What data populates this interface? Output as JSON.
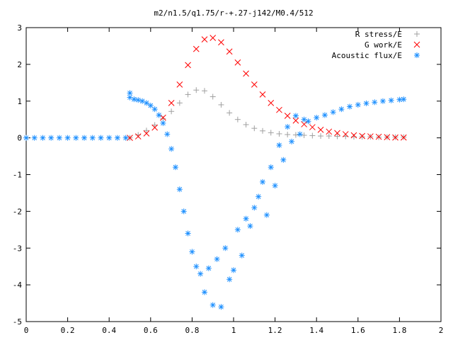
{
  "chart_data": {
    "type": "scatter",
    "title": "m2/n1.5/q1.75/r-+.27-j142/M0.4/512",
    "xlabel": "",
    "ylabel": "",
    "xlim": [
      0,
      2
    ],
    "ylim": [
      -5,
      3
    ],
    "x_ticks": [
      "0",
      "0.2",
      "0.4",
      "0.6",
      "0.8",
      "1",
      "1.2",
      "1.4",
      "1.6",
      "1.8",
      "2"
    ],
    "y_ticks": [
      "3",
      "2",
      "1",
      "0",
      "-1",
      "-2",
      "-3",
      "-4",
      "-5"
    ],
    "grid": false,
    "legend_position": "top-right",
    "series": [
      {
        "name": "R stress/E",
        "marker": "+",
        "color": "#a0a0a0",
        "x": [
          0.5,
          0.54,
          0.58,
          0.62,
          0.66,
          0.7,
          0.74,
          0.78,
          0.82,
          0.86,
          0.9,
          0.94,
          0.98,
          1.02,
          1.06,
          1.1,
          1.14,
          1.18,
          1.22,
          1.26,
          1.3,
          1.34,
          1.38,
          1.42,
          1.46,
          1.5,
          1.54,
          1.58,
          1.62,
          1.66,
          1.7,
          1.74,
          1.78,
          1.82
        ],
        "y": [
          0.0,
          0.08,
          0.2,
          0.35,
          0.52,
          0.72,
          0.95,
          1.18,
          1.3,
          1.28,
          1.12,
          0.9,
          0.68,
          0.5,
          0.36,
          0.26,
          0.19,
          0.14,
          0.11,
          0.09,
          0.08,
          0.07,
          0.06,
          0.05,
          0.05,
          0.04,
          0.04,
          0.03,
          0.03,
          0.03,
          0.02,
          0.02,
          0.02,
          0.02
        ]
      },
      {
        "name": "G work/E",
        "marker": "x",
        "color": "#ff0000",
        "x": [
          0.5,
          0.54,
          0.58,
          0.62,
          0.66,
          0.7,
          0.74,
          0.78,
          0.82,
          0.86,
          0.9,
          0.94,
          0.98,
          1.02,
          1.06,
          1.1,
          1.14,
          1.18,
          1.22,
          1.26,
          1.3,
          1.34,
          1.38,
          1.42,
          1.46,
          1.5,
          1.54,
          1.58,
          1.62,
          1.66,
          1.7,
          1.74,
          1.78,
          1.82
        ],
        "y": [
          0.0,
          0.04,
          0.12,
          0.28,
          0.55,
          0.95,
          1.45,
          1.98,
          2.42,
          2.68,
          2.72,
          2.6,
          2.35,
          2.05,
          1.75,
          1.45,
          1.18,
          0.95,
          0.76,
          0.6,
          0.47,
          0.37,
          0.29,
          0.22,
          0.17,
          0.13,
          0.1,
          0.07,
          0.05,
          0.04,
          0.03,
          0.02,
          0.01,
          0.01
        ]
      },
      {
        "name": "Acoustic flux/E",
        "marker": "*",
        "color": "#1e90ff",
        "x": [
          0.0,
          0.04,
          0.08,
          0.12,
          0.16,
          0.2,
          0.24,
          0.28,
          0.32,
          0.36,
          0.4,
          0.44,
          0.48,
          0.5,
          0.5,
          0.52,
          0.54,
          0.56,
          0.58,
          0.6,
          0.62,
          0.64,
          0.66,
          0.68,
          0.7,
          0.72,
          0.74,
          0.76,
          0.78,
          0.8,
          0.82,
          0.84,
          0.86,
          0.88,
          0.9,
          0.92,
          0.94,
          0.96,
          0.98,
          1.0,
          1.02,
          1.04,
          1.06,
          1.08,
          1.1,
          1.12,
          1.14,
          1.16,
          1.18,
          1.2,
          1.22,
          1.24,
          1.26,
          1.28,
          1.3,
          1.32,
          1.34,
          1.36,
          1.4,
          1.44,
          1.48,
          1.52,
          1.56,
          1.6,
          1.64,
          1.68,
          1.72,
          1.76,
          1.8,
          1.82
        ],
        "y": [
          0.0,
          0.0,
          0.0,
          0.0,
          0.0,
          0.0,
          0.0,
          0.0,
          0.0,
          0.0,
          0.0,
          0.0,
          0.0,
          1.22,
          1.1,
          1.05,
          1.03,
          1.0,
          0.95,
          0.88,
          0.78,
          0.62,
          0.4,
          0.1,
          -0.3,
          -0.8,
          -1.4,
          -2.0,
          -2.6,
          -3.1,
          -3.5,
          -3.7,
          -4.2,
          -3.55,
          -4.55,
          -3.3,
          -4.6,
          -3.0,
          -3.85,
          -3.6,
          -2.5,
          -3.2,
          -2.2,
          -2.4,
          -1.9,
          -1.6,
          -1.2,
          -2.1,
          -0.8,
          -1.3,
          -0.2,
          -0.6,
          0.3,
          -0.1,
          0.6,
          0.1,
          0.5,
          0.45,
          0.55,
          0.62,
          0.7,
          0.78,
          0.85,
          0.9,
          0.94,
          0.97,
          1.0,
          1.02,
          1.04,
          1.05
        ]
      }
    ]
  }
}
